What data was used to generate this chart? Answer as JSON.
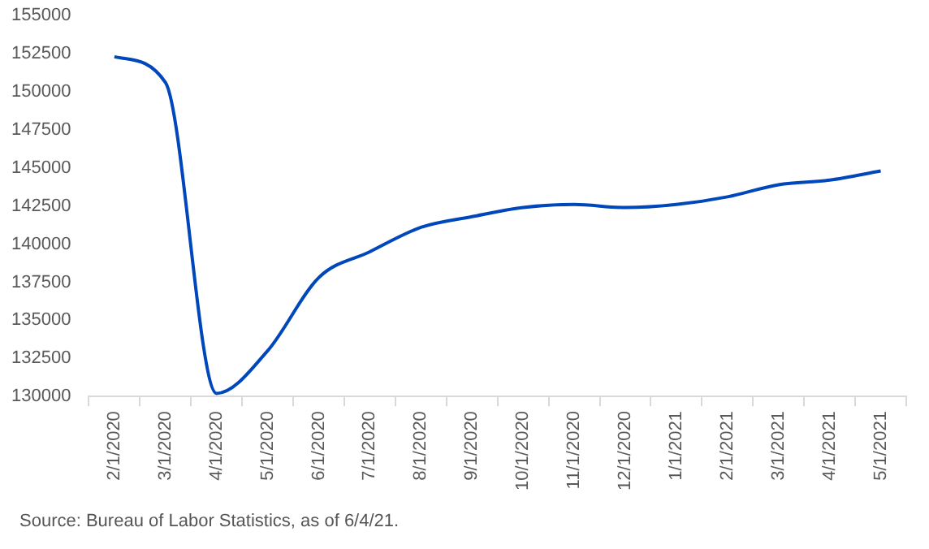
{
  "chart_data": {
    "type": "line",
    "categories": [
      "2/1/2020",
      "3/1/2020",
      "4/1/2020",
      "5/1/2020",
      "6/1/2020",
      "7/1/2020",
      "8/1/2020",
      "9/1/2020",
      "10/1/2020",
      "11/1/2020",
      "12/1/2020",
      "1/1/2021",
      "2/1/2021",
      "3/1/2021",
      "4/1/2021",
      "5/1/2021"
    ],
    "series": [
      {
        "color": "#0047bb",
        "values": [
          152300,
          150600,
          130200,
          133000,
          137800,
          139500,
          141100,
          141800,
          142400,
          142600,
          142400,
          142600,
          143100,
          143900,
          144200,
          144800
        ]
      }
    ],
    "ylim": [
      130000,
      155000
    ],
    "yticks": [
      130000,
      132500,
      135000,
      137500,
      140000,
      142500,
      145000,
      147500,
      150000,
      152500,
      155000
    ],
    "grid": false,
    "legend": false,
    "marker": "none",
    "line_style": "solid",
    "annotations": [
      "Source: Bureau of Labor Statistics, as of 6/4/21."
    ]
  }
}
